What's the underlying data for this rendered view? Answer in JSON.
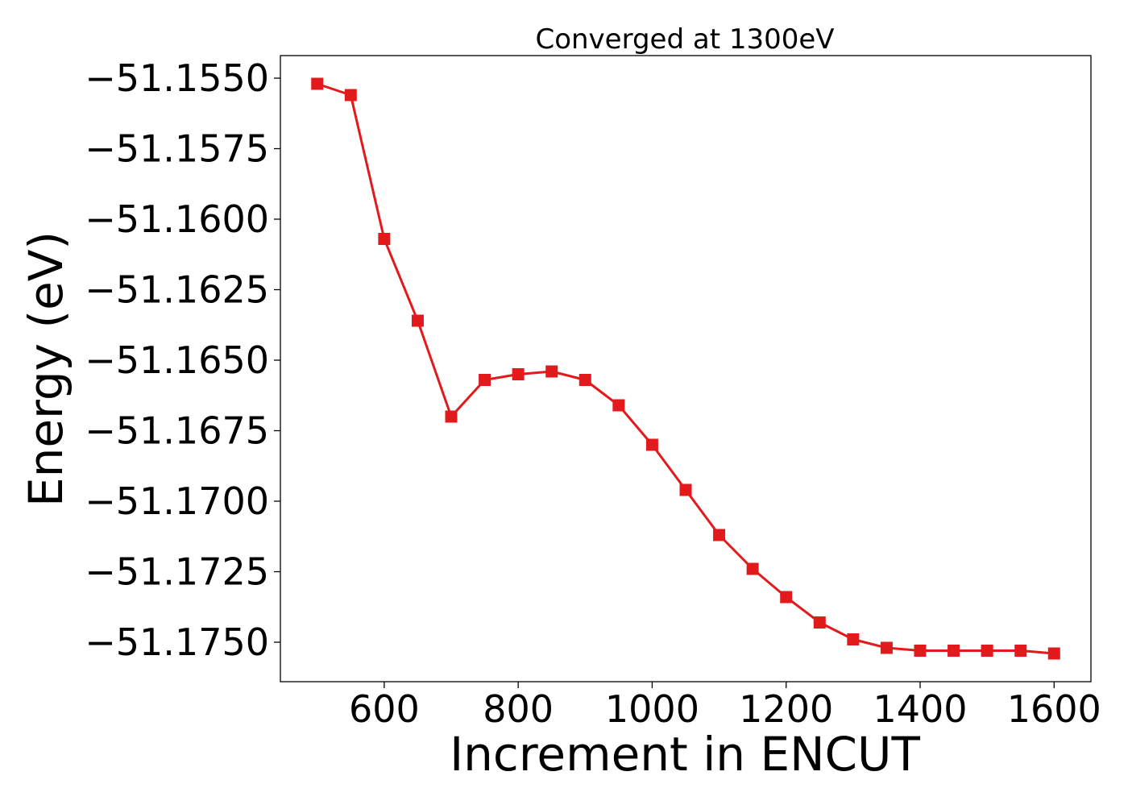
{
  "chart_data": {
    "type": "line",
    "title": "Converged at 1300eV",
    "xlabel": "Increment in ENCUT",
    "ylabel": "Energy (eV)",
    "x": [
      500,
      550,
      600,
      650,
      700,
      750,
      800,
      850,
      900,
      950,
      1000,
      1050,
      1100,
      1150,
      1200,
      1250,
      1300,
      1350,
      1400,
      1450,
      1500,
      1550,
      1600
    ],
    "series": [
      {
        "name": "",
        "color": "#e31a1c",
        "marker": "square",
        "values": [
          -51.1552,
          -51.1556,
          -51.1607,
          -51.1636,
          -51.167,
          -51.1657,
          -51.1655,
          -51.1654,
          -51.1657,
          -51.1666,
          -51.168,
          -51.1696,
          -51.1712,
          -51.1724,
          -51.1734,
          -51.1743,
          -51.1749,
          -51.1752,
          -51.1753,
          -51.1753,
          -51.1753,
          -51.1753,
          -51.1754
        ]
      }
    ],
    "xlim": [
      445,
      1655
    ],
    "ylim": [
      -51.1764,
      -51.1542
    ],
    "xticks": [
      600,
      800,
      1000,
      1200,
      1400,
      1600
    ],
    "xtick_labels": [
      "600",
      "800",
      "1000",
      "1200",
      "1400",
      "1600"
    ],
    "yticks": [
      -51.155,
      -51.1575,
      -51.16,
      -51.1625,
      -51.165,
      -51.1675,
      -51.17,
      -51.1725,
      -51.175
    ],
    "ytick_labels": [
      "−51.1550",
      "−51.1575",
      "−51.1600",
      "−51.1625",
      "−51.1650",
      "−51.1675",
      "−51.1700",
      "−51.1725",
      "−51.1750"
    ],
    "grid": false,
    "legend": "none"
  }
}
